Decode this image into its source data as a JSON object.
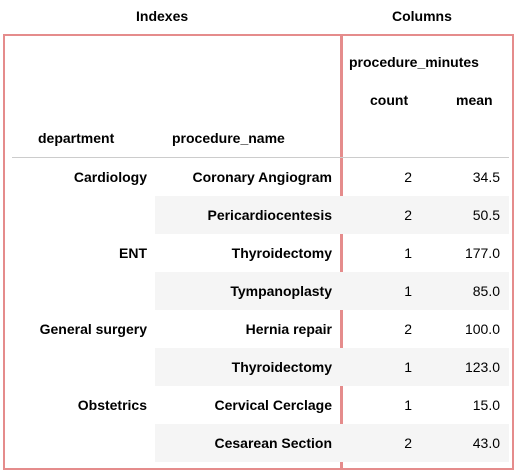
{
  "labels": {
    "indexes": "Indexes",
    "columns": "Columns"
  },
  "header": {
    "column_group": "procedure_minutes",
    "count": "count",
    "mean": "mean",
    "index_department": "department",
    "index_procedure": "procedure_name"
  },
  "rows": [
    {
      "department": "Cardiology",
      "procedure": "Coronary Angiogram",
      "count": "2",
      "mean": "34.5"
    },
    {
      "department": "",
      "procedure": "Pericardiocentesis",
      "count": "2",
      "mean": "50.5"
    },
    {
      "department": "ENT",
      "procedure": "Thyroidectomy",
      "count": "1",
      "mean": "177.0"
    },
    {
      "department": "",
      "procedure": "Tympanoplasty",
      "count": "1",
      "mean": "85.0"
    },
    {
      "department": "General surgery",
      "procedure": "Hernia repair",
      "count": "2",
      "mean": "100.0"
    },
    {
      "department": "",
      "procedure": "Thyroidectomy",
      "count": "1",
      "mean": "123.0"
    },
    {
      "department": "Obstetrics",
      "procedure": "Cervical Cerclage",
      "count": "1",
      "mean": "15.0"
    },
    {
      "department": "",
      "procedure": "Cesarean Section",
      "count": "2",
      "mean": "43.0"
    }
  ],
  "colors": {
    "annotation_border": "#e58c8c",
    "row_shade": "#f5f5f5"
  }
}
